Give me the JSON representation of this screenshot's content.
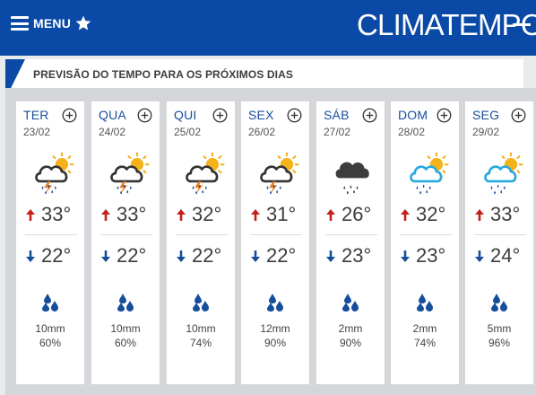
{
  "header": {
    "menu_label": "MENU",
    "logo_text": "CLIMATEMPO",
    "brand_color": "#0a4aa6"
  },
  "section": {
    "title": "PREVISÃO DO TEMPO PARA OS PRÓXIMOS DIAS"
  },
  "days": [
    {
      "name": "TER",
      "date": "23/02",
      "icon": "storm-sun-icon",
      "max": "33°",
      "min": "22°",
      "rain": "10mm",
      "prob": "60%"
    },
    {
      "name": "QUA",
      "date": "24/02",
      "icon": "storm-sun-icon",
      "max": "33°",
      "min": "22°",
      "rain": "10mm",
      "prob": "60%"
    },
    {
      "name": "QUI",
      "date": "25/02",
      "icon": "storm-sun-icon",
      "max": "32°",
      "min": "22°",
      "rain": "10mm",
      "prob": "74%"
    },
    {
      "name": "SEX",
      "date": "26/02",
      "icon": "storm-sun-icon",
      "max": "31°",
      "min": "22°",
      "rain": "12mm",
      "prob": "90%"
    },
    {
      "name": "SÁB",
      "date": "27/02",
      "icon": "rain-cloud-icon",
      "max": "26°",
      "min": "23°",
      "rain": "2mm",
      "prob": "90%"
    },
    {
      "name": "DOM",
      "date": "28/02",
      "icon": "rain-sun-icon",
      "max": "32°",
      "min": "23°",
      "rain": "2mm",
      "prob": "74%"
    },
    {
      "name": "SEG",
      "date": "29/02",
      "icon": "rain-sun-icon",
      "max": "33°",
      "min": "24°",
      "rain": "5mm",
      "prob": "96%"
    }
  ],
  "icons": {
    "menu": "hamburger-icon",
    "favorite": "star-icon",
    "expand": "plus-circle-icon",
    "max_arrow": "arrow-up-icon",
    "min_arrow": "arrow-down-icon",
    "rain": "raindrops-icon"
  },
  "colors": {
    "max_arrow": "#c3201c",
    "min_arrow": "#174e9c",
    "drops": "#174e9c",
    "sun": "#f5b21b"
  }
}
